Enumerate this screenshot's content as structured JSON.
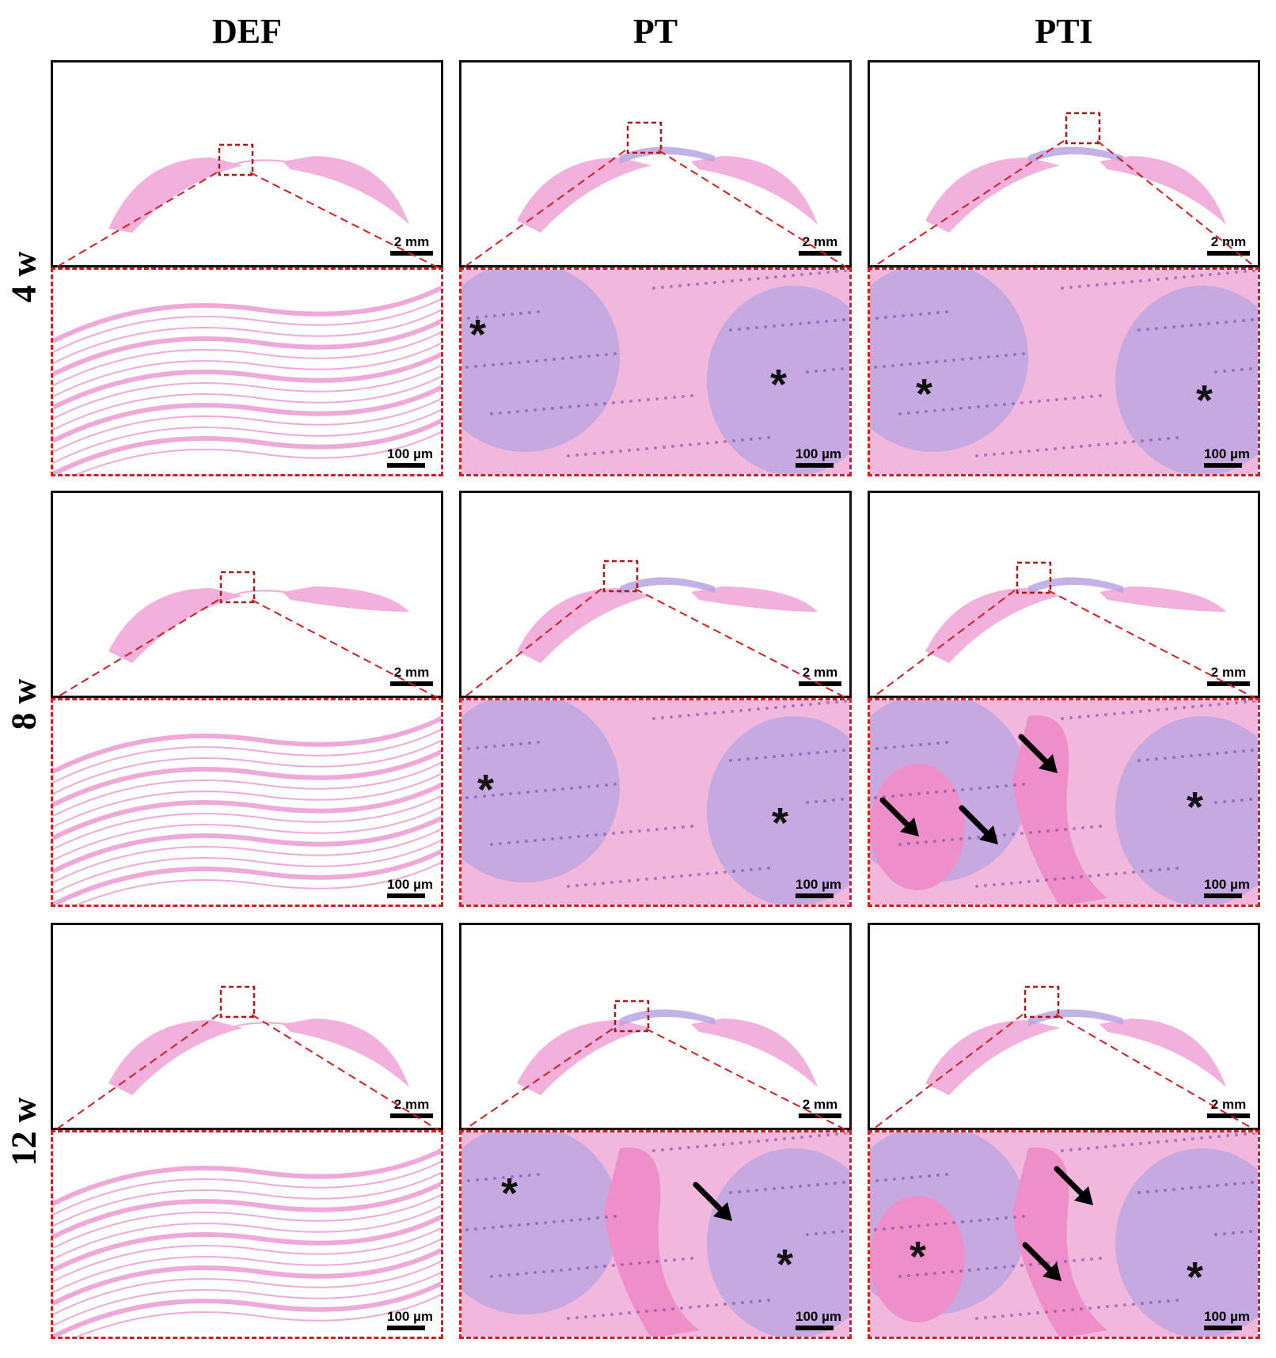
{
  "columns": [
    "DEF",
    "PT",
    "PTI"
  ],
  "rows": [
    "4 w",
    "8 w",
    "12 w"
  ],
  "scale_overview": "2 mm",
  "scale_zoom": "100 µm",
  "marker_star": "*",
  "colors": {
    "stain_pink": "#f0a8d8",
    "stain_purple": "#b7a4e0",
    "dashed_red": "#d21e1e",
    "frame": "#111111"
  }
}
